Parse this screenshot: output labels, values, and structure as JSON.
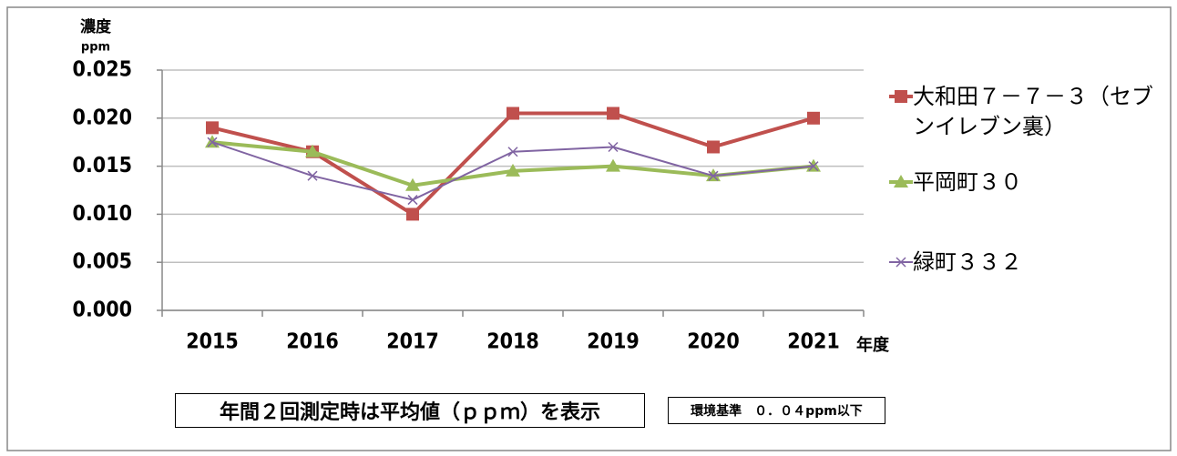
{
  "chart_data": {
    "type": "line",
    "y_label": "濃度",
    "y_unit": "ppm",
    "x_label": "年度",
    "categories": [
      "2015",
      "2016",
      "2017",
      "2018",
      "2019",
      "2020",
      "2021"
    ],
    "series": [
      {
        "name": "大和田７－７－３（セブンイレブン裏）",
        "color": "#c0504d",
        "marker": "square",
        "values": [
          0.019,
          0.0165,
          0.01,
          0.0205,
          0.0205,
          0.017,
          0.02
        ]
      },
      {
        "name": "平岡町３０",
        "color": "#9bbb59",
        "marker": "triangle",
        "values": [
          0.0175,
          0.0165,
          0.013,
          0.0145,
          0.015,
          0.014,
          0.015
        ]
      },
      {
        "name": "緑町３３２",
        "color": "#8064a2",
        "marker": "x",
        "values": [
          0.0175,
          0.014,
          0.0115,
          0.0165,
          0.017,
          0.014,
          0.015
        ]
      }
    ],
    "ylim": [
      0,
      0.025
    ],
    "yticks": [
      {
        "value": 0,
        "label": "0.000"
      },
      0.005,
      {
        "value": 0.01,
        "label": "0.010"
      },
      0.015,
      {
        "value": 0.02,
        "label": "0.020"
      },
      0.025
    ],
    "grid": true,
    "legend": "right",
    "annotations": [
      "年間２回測定時は平均値（ｐｐｍ）を表示",
      "環境基準　０．０４ppm以下"
    ]
  }
}
